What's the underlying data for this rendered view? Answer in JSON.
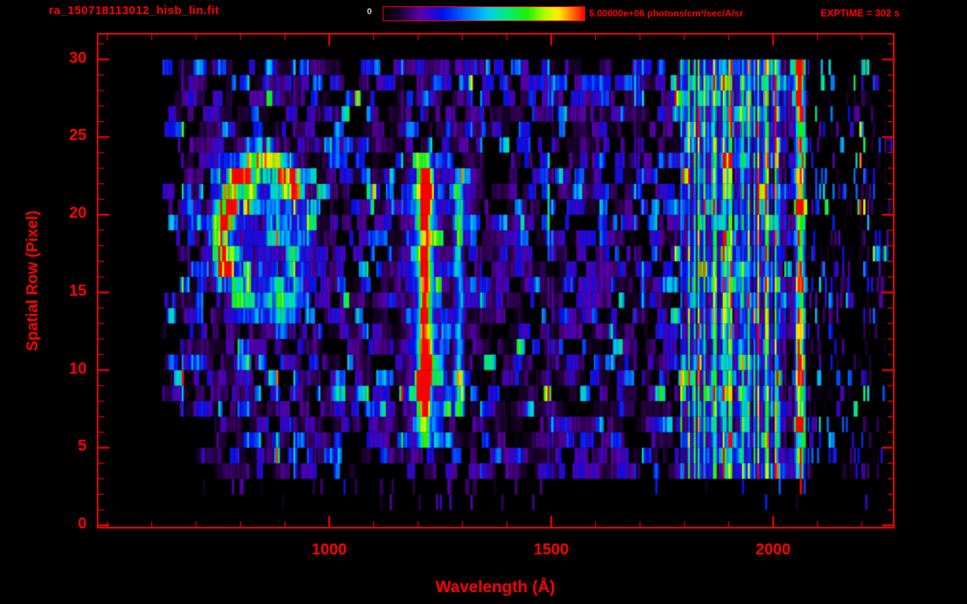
{
  "header": {
    "title": "ra_150718113012_hisb_lin.fit",
    "colorbar_min_label": "0",
    "colorbar_max_label": "5.00000e+06 photons/cm²/sec/A/sr",
    "exptime_label": "EXPTIME = 302 s"
  },
  "chart_data": {
    "type": "heatmap",
    "title": "ra_150718113012_hisb_lin.fit",
    "xlabel": "Wavelength (Å)",
    "ylabel": "Spatial Row (Pixel)",
    "xlim": [
      480,
      2270
    ],
    "ylim": [
      -0.1,
      31.6
    ],
    "xticks": [
      1000,
      1500,
      2000
    ],
    "xtick_minor_step": 100,
    "xtick_minor_range": [
      500,
      2200
    ],
    "yticks": [
      0,
      5,
      10,
      15,
      20,
      25,
      30
    ],
    "ytick_minor_step": 1,
    "axis_color": "#ff0000",
    "background_color": "#000000",
    "colorbar": {
      "min": 0,
      "max": 5000000,
      "max_text": "5.00000e+06",
      "units": "photons/cm²/sec/A/sr",
      "exptime_seconds": 302
    },
    "colormap": [
      {
        "t": 0.0,
        "c": "#000000"
      },
      {
        "t": 0.08,
        "c": "#1c0030"
      },
      {
        "t": 0.18,
        "c": "#5a00a8"
      },
      {
        "t": 0.3,
        "c": "#0010ee"
      },
      {
        "t": 0.42,
        "c": "#0078ff"
      },
      {
        "t": 0.52,
        "c": "#00ccee"
      },
      {
        "t": 0.62,
        "c": "#00ee77"
      },
      {
        "t": 0.72,
        "c": "#22ee00"
      },
      {
        "t": 0.8,
        "c": "#aaff00"
      },
      {
        "t": 0.87,
        "c": "#ffee00"
      },
      {
        "t": 0.93,
        "c": "#ff8800"
      },
      {
        "t": 1.0,
        "c": "#ff0000"
      }
    ],
    "features": {
      "seed": 20150718,
      "noise": {
        "x_range": [
          620,
          2268
        ],
        "columns": 380,
        "row_gain": [
          0,
          0.8,
          0.8,
          0.95,
          0.9,
          0.9,
          0.95,
          1.1,
          1.3,
          1.35,
          1.25,
          1.0,
          1.0,
          1.0,
          1.05,
          1.05,
          1.1,
          1.05,
          1.05,
          1.2,
          1.3,
          1.3,
          1.15,
          1.0,
          1.0,
          1.0,
          1.05,
          1.2,
          1.25,
          1.2
        ],
        "sparse_row_keep": {
          "1": 0.05,
          "2": 0.15
        }
      },
      "lyman_alpha_line": {
        "center": 1216,
        "sigma": 9,
        "halo_sigma": 30,
        "halo_amp": 0.32,
        "row_start": 5,
        "row_amps": [
          0.5,
          0.62,
          0.78,
          0.9,
          1.0,
          1.0,
          0.95,
          0.85,
          0.78,
          0.74,
          0.8,
          0.88,
          0.84,
          0.78,
          0.9,
          1.0,
          1.0,
          0.88,
          0.6
        ]
      },
      "secondary_line": {
        "center": 1292,
        "sigma": 7,
        "halo_sigma": 16,
        "halo_amp": 0.12,
        "row_start": 7,
        "row_amps": [
          0.36,
          0.46,
          0.5,
          0.42,
          0.34,
          0.3,
          0.3,
          0.33,
          0.3,
          0.33,
          0.38,
          0.46,
          0.54,
          0.5,
          0.44,
          0.36
        ]
      },
      "airglow_arc": {
        "center_wavelength": 855,
        "center_row": 18.6,
        "semi_a": 100,
        "semi_b": 4.6,
        "ring_sigma": 0.16,
        "amp": 0.85,
        "inner_amp": 0.2,
        "bright_angles": [
          35,
          215
        ],
        "mid_angles": [
          215,
          305
        ],
        "mid_factor": 0.55,
        "gap_factor": 0.3
      },
      "longwave_band": {
        "range": [
          1790,
          2030
        ],
        "strong_prob": 0.45,
        "base": [
          0.08,
          0.26
        ],
        "strong": [
          0.3,
          0.75
        ]
      },
      "edge_column": {
        "center": 2062,
        "sigma": 7,
        "amp": 1.0,
        "row_min": 2
      },
      "sparse_tail": {
        "range": [
          2072,
          2268
        ],
        "keep": 0.3,
        "boost": 1.2
      },
      "row_start_wavelength": {
        "default": [
          620,
          665
        ],
        "low_rows": [
          680,
          750
        ],
        "low_row_max": 6
      },
      "row_end_wavelength": [
        2240,
        2268
      ]
    }
  }
}
